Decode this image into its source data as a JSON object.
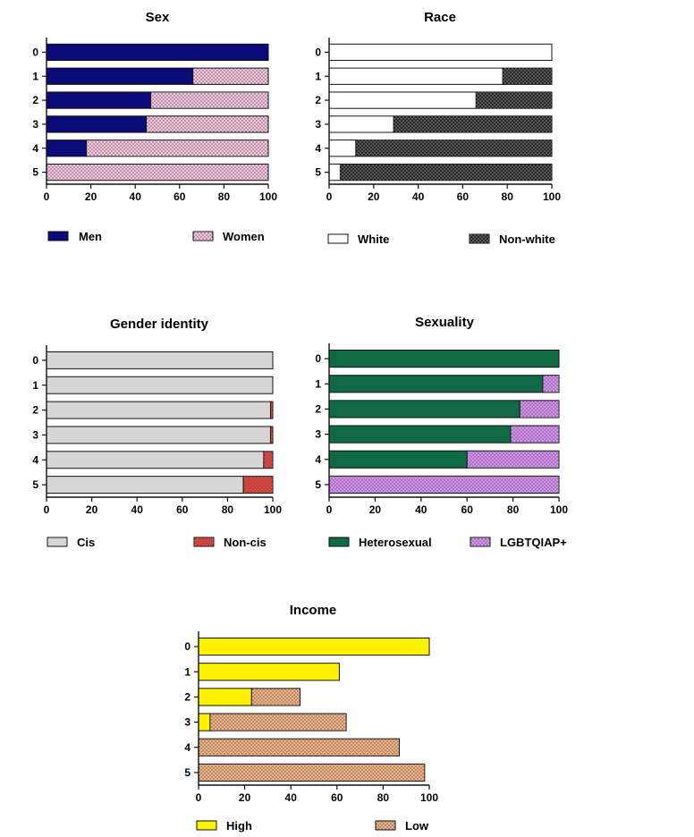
{
  "chart_data": [
    {
      "type": "bar",
      "orientation": "horizontal",
      "stacked": true,
      "title": "Sex",
      "categories": [
        "0",
        "1",
        "2",
        "3",
        "4",
        "5"
      ],
      "xlim": [
        0,
        100
      ],
      "xticks": [
        0,
        20,
        40,
        60,
        80,
        100
      ],
      "series": [
        {
          "name": "Men",
          "color": "#0a0a7a",
          "pattern": "solid",
          "values": [
            100,
            66,
            47,
            45,
            18,
            0
          ]
        },
        {
          "name": "Women",
          "color": "#f7c4df",
          "pattern": "dots",
          "values": [
            0,
            34,
            53,
            55,
            82,
            100
          ]
        }
      ],
      "totals": [
        100,
        100,
        100,
        100,
        100,
        100
      ]
    },
    {
      "type": "bar",
      "orientation": "horizontal",
      "stacked": true,
      "title": "Race",
      "categories": [
        "0",
        "1",
        "2",
        "3",
        "4",
        "5"
      ],
      "xlim": [
        0,
        100
      ],
      "xticks": [
        0,
        20,
        40,
        60,
        80,
        100
      ],
      "series": [
        {
          "name": "White",
          "color": "#ffffff",
          "pattern": "solid",
          "values": [
            100,
            78,
            66,
            29,
            12,
            5
          ]
        },
        {
          "name": "Non-white",
          "color": "#2a2a2a",
          "pattern": "dots",
          "values": [
            0,
            22,
            34,
            71,
            88,
            95
          ]
        }
      ],
      "totals": [
        100,
        100,
        100,
        100,
        100,
        100
      ]
    },
    {
      "type": "bar",
      "orientation": "horizontal",
      "stacked": true,
      "title": "Gender identity",
      "categories": [
        "0",
        "1",
        "2",
        "3",
        "4",
        "5"
      ],
      "xlim": [
        0,
        100
      ],
      "xticks": [
        0,
        20,
        40,
        60,
        80,
        100
      ],
      "series": [
        {
          "name": "Cis",
          "color": "#d6d6d6",
          "pattern": "solid",
          "values": [
            100,
            100,
            99,
            99,
            96,
            87
          ]
        },
        {
          "name": "Non-cis",
          "color": "#e8403a",
          "pattern": "dots",
          "values": [
            0,
            0,
            1,
            1,
            4,
            13
          ]
        }
      ],
      "totals": [
        100,
        100,
        100,
        100,
        100,
        100
      ]
    },
    {
      "type": "bar",
      "orientation": "horizontal",
      "stacked": true,
      "title": "Sexuality",
      "categories": [
        "0",
        "1",
        "2",
        "3",
        "4",
        "5"
      ],
      "xlim": [
        0,
        100
      ],
      "xticks": [
        0,
        20,
        40,
        60,
        80,
        100
      ],
      "series": [
        {
          "name": "Heterosexual",
          "color": "#0f6a45",
          "pattern": "solid",
          "values": [
            100,
            93,
            83,
            79,
            60,
            0
          ]
        },
        {
          "name": "LGBTQIAP+",
          "color": "#d88ef2",
          "pattern": "dots",
          "values": [
            0,
            7,
            17,
            21,
            40,
            100
          ]
        }
      ],
      "totals": [
        100,
        100,
        100,
        100,
        100,
        100
      ]
    },
    {
      "type": "bar",
      "orientation": "horizontal",
      "stacked": true,
      "title": "Income",
      "categories": [
        "0",
        "1",
        "2",
        "3",
        "4",
        "5"
      ],
      "xlim": [
        0,
        100
      ],
      "xticks": [
        0,
        20,
        40,
        60,
        80,
        100
      ],
      "series": [
        {
          "name": "High",
          "color": "#fff200",
          "pattern": "solid",
          "values": [
            100,
            61,
            23,
            5,
            0,
            0
          ]
        },
        {
          "name": "Low",
          "color": "#f2b183",
          "pattern": "dots",
          "values": [
            0,
            0,
            21,
            59,
            87,
            98
          ]
        }
      ],
      "totals": [
        100,
        61,
        44,
        64,
        87,
        98
      ]
    }
  ]
}
